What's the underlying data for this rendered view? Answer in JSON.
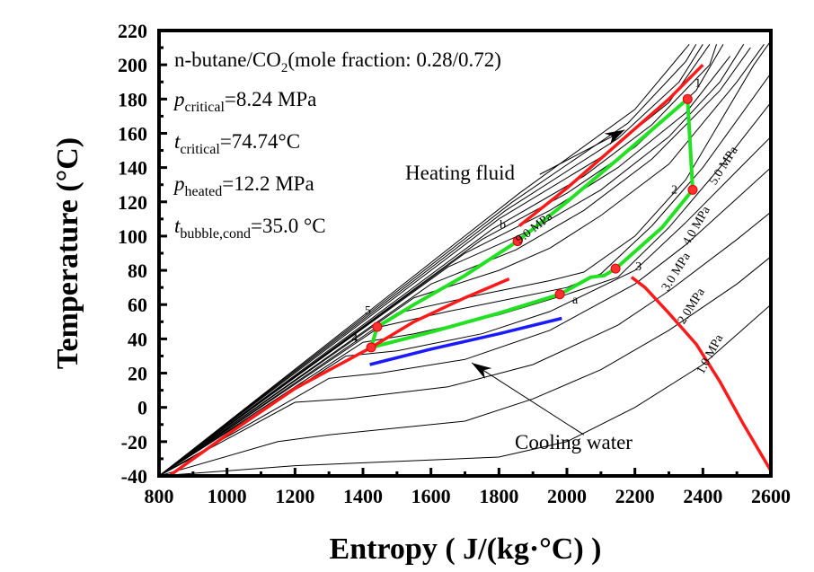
{
  "chart_data": {
    "type": "line",
    "title": "",
    "xlabel": "Entropy ( J/(kg·°C) )",
    "ylabel": "Temperature (°C)",
    "xlim": [
      800,
      2600
    ],
    "ylim": [
      -40,
      220
    ],
    "xticks": [
      800,
      1000,
      1200,
      1400,
      1600,
      1800,
      2000,
      2200,
      2400,
      2600
    ],
    "yticks": [
      -40,
      -20,
      0,
      20,
      40,
      60,
      80,
      100,
      120,
      140,
      160,
      180,
      200,
      220
    ],
    "grid": false,
    "annotations_text": {
      "mixture": "n-butane/CO",
      "mixture_sub": "2",
      "mixture_tail": "(mole fraction: 0.28/0.72)",
      "p_critical_sym": "p",
      "p_critical_sub": "critical",
      "p_critical_val": "=8.24 MPa",
      "t_critical_sym": "t",
      "t_critical_sub": "critical",
      "t_critical_val": "=74.74°C",
      "p_heated_sym": "p",
      "p_heated_sub": "heated",
      "p_heated_val": "=12.2 MPa",
      "t_bubble_sym": "t",
      "t_bubble_sub": "bubble,cond",
      "t_bubble_val": "=35.0 °C",
      "heating_fluid": "Heating fluid",
      "cooling_water": "Cooling water"
    },
    "isobar_labels": [
      {
        "text": "9.0 MPa",
        "s": 1910,
        "T": 103
      },
      {
        "text": "5.0 MPa",
        "s": 2470,
        "T": 140
      },
      {
        "text": "4.0 MPa",
        "s": 2390,
        "T": 105
      },
      {
        "text": "3.0 MPa",
        "s": 2330,
        "T": 78
      },
      {
        "text": "2.0MPa",
        "s": 2375,
        "T": 58
      },
      {
        "text": "1.0 MPa",
        "s": 2430,
        "T": 30
      }
    ],
    "state_points": [
      {
        "label": "1",
        "s": 2355,
        "T": 180
      },
      {
        "label": "2",
        "s": 2370,
        "T": 127
      },
      {
        "label": "3",
        "s": 2143,
        "T": 81
      },
      {
        "label": "a",
        "s": 1979,
        "T": 66
      },
      {
        "label": "4",
        "s": 1424,
        "T": 35
      },
      {
        "label": "5",
        "s": 1442,
        "T": 47
      },
      {
        "label": "b",
        "s": 1855,
        "T": 97
      }
    ],
    "series": [
      {
        "name": "cycle",
        "color": "#22e022",
        "points": [
          [
            1442,
            47
          ],
          [
            1550,
            60
          ],
          [
            1700,
            77
          ],
          [
            1855,
            97
          ],
          [
            2000,
            120
          ],
          [
            2150,
            145
          ],
          [
            2355,
            180
          ],
          [
            2370,
            127
          ],
          [
            2280,
            105
          ],
          [
            2143,
            81
          ],
          [
            2110,
            77
          ],
          [
            2070,
            76
          ],
          [
            1979,
            66
          ],
          [
            1800,
            55
          ],
          [
            1600,
            44
          ],
          [
            1424,
            35
          ],
          [
            1442,
            47
          ]
        ]
      },
      {
        "name": "heating fluid",
        "color": "#ff1a1a",
        "points": [
          [
            1860,
            106
          ],
          [
            2000,
            128
          ],
          [
            2150,
            154
          ],
          [
            2300,
            180
          ],
          [
            2400,
            200
          ]
        ]
      },
      {
        "name": "cooling water",
        "color": "#1a1aff",
        "points": [
          [
            1420,
            25
          ],
          [
            1600,
            34
          ],
          [
            1800,
            43
          ],
          [
            1985,
            52
          ]
        ]
      },
      {
        "name": "saturation liquid",
        "color": "#ff1a1a",
        "points": [
          [
            830,
            -40
          ],
          [
            1000,
            -16
          ],
          [
            1200,
            11
          ],
          [
            1424,
            35
          ],
          [
            1550,
            50
          ],
          [
            1700,
            64
          ],
          [
            1830,
            75
          ]
        ]
      },
      {
        "name": "saturation vapor",
        "color": "#ff1a1a",
        "points": [
          [
            2190,
            76
          ],
          [
            2230,
            70
          ],
          [
            2300,
            55
          ],
          [
            2380,
            37
          ],
          [
            2450,
            15
          ],
          [
            2520,
            -10
          ],
          [
            2600,
            -37
          ]
        ]
      }
    ],
    "isobars": [
      {
        "p": "1.0 MPa",
        "points": [
          [
            800,
            -40
          ],
          [
            1200,
            -34
          ],
          [
            1800,
            -29
          ],
          [
            2000,
            -20
          ],
          [
            2200,
            0
          ],
          [
            2400,
            25
          ],
          [
            2600,
            60
          ]
        ]
      },
      {
        "p": "2.0 MPa",
        "points": [
          [
            800,
            -40
          ],
          [
            1150,
            -20
          ],
          [
            1300,
            -16
          ],
          [
            1700,
            -8
          ],
          [
            1900,
            5
          ],
          [
            2100,
            22
          ],
          [
            2300,
            45
          ],
          [
            2500,
            72
          ],
          [
            2600,
            88
          ]
        ]
      },
      {
        "p": "3.0 MPa",
        "points": [
          [
            800,
            -40
          ],
          [
            1200,
            3
          ],
          [
            1350,
            5
          ],
          [
            1650,
            12
          ],
          [
            1900,
            25
          ],
          [
            2150,
            48
          ],
          [
            2300,
            68
          ],
          [
            2500,
            98
          ],
          [
            2600,
            114
          ]
        ]
      },
      {
        "p": "4.0 MPa",
        "points": [
          [
            800,
            -40
          ],
          [
            1300,
            17
          ],
          [
            1450,
            20
          ],
          [
            1700,
            28
          ],
          [
            1950,
            45
          ],
          [
            2200,
            72
          ],
          [
            2350,
            95
          ],
          [
            2500,
            122
          ],
          [
            2600,
            140
          ]
        ]
      },
      {
        "p": "5.0 MPa",
        "points": [
          [
            800,
            -40
          ],
          [
            1350,
            30
          ],
          [
            1500,
            33
          ],
          [
            1750,
            43
          ],
          [
            1950,
            56
          ],
          [
            2200,
            80
          ],
          [
            2350,
            108
          ],
          [
            2500,
            138
          ],
          [
            2600,
            158
          ]
        ]
      },
      {
        "p": "6.0 MPa",
        "points": [
          [
            800,
            -40
          ],
          [
            1400,
            38
          ],
          [
            1550,
            43
          ],
          [
            1800,
            54
          ],
          [
            2000,
            66
          ],
          [
            2150,
            76
          ],
          [
            2300,
            105
          ],
          [
            2450,
            140
          ],
          [
            2600,
            178
          ]
        ]
      },
      {
        "p": "7.0 MPa",
        "points": [
          [
            800,
            -40
          ],
          [
            1450,
            47
          ],
          [
            1650,
            56
          ],
          [
            1850,
            64
          ],
          [
            2000,
            70
          ],
          [
            2100,
            78
          ],
          [
            2250,
            106
          ],
          [
            2400,
            140
          ],
          [
            2600,
            195
          ]
        ]
      },
      {
        "p": "8.0 MPa",
        "points": [
          [
            800,
            -40
          ],
          [
            1500,
            55
          ],
          [
            1750,
            66
          ],
          [
            1950,
            74
          ],
          [
            2050,
            79
          ],
          [
            2200,
            100
          ],
          [
            2350,
            133
          ],
          [
            2550,
            200
          ],
          [
            2600,
            214
          ]
        ]
      },
      {
        "p": "9.0 MPa",
        "points": [
          [
            800,
            -40
          ],
          [
            1550,
            64
          ],
          [
            1800,
            80
          ],
          [
            1950,
            93
          ],
          [
            2100,
            112
          ],
          [
            2300,
            142
          ],
          [
            2500,
            190
          ],
          [
            2580,
            212
          ]
        ]
      },
      {
        "p": "10 MPa",
        "points": [
          [
            800,
            -40
          ],
          [
            1600,
            72
          ],
          [
            1850,
            92
          ],
          [
            2050,
            115
          ],
          [
            2250,
            145
          ],
          [
            2450,
            185
          ],
          [
            2540,
            210
          ]
        ]
      },
      {
        "p": "11 MPa",
        "points": [
          [
            800,
            -40
          ],
          [
            1650,
            82
          ],
          [
            1900,
            104
          ],
          [
            2100,
            127
          ],
          [
            2300,
            158
          ],
          [
            2450,
            190
          ],
          [
            2520,
            212
          ]
        ]
      },
      {
        "p": "12 MPa",
        "points": [
          [
            800,
            -40
          ],
          [
            1700,
            90
          ],
          [
            1950,
            115
          ],
          [
            2150,
            140
          ],
          [
            2350,
            172
          ],
          [
            2480,
            205
          ]
        ]
      },
      {
        "p": "13 MPa",
        "points": [
          [
            800,
            -40
          ],
          [
            1750,
            98
          ],
          [
            2000,
            125
          ],
          [
            2200,
            152
          ],
          [
            2380,
            185
          ],
          [
            2460,
            212
          ]
        ]
      },
      {
        "p": "14 MPa",
        "points": [
          [
            800,
            -40
          ],
          [
            1780,
            104
          ],
          [
            2050,
            135
          ],
          [
            2250,
            165
          ],
          [
            2420,
            200
          ],
          [
            2440,
            212
          ]
        ]
      },
      {
        "p": "15 MPa",
        "points": [
          [
            800,
            -40
          ],
          [
            1800,
            110
          ],
          [
            2100,
            146
          ],
          [
            2300,
            178
          ],
          [
            2420,
            212
          ]
        ]
      },
      {
        "p": "16 MPa",
        "points": [
          [
            800,
            -40
          ],
          [
            1820,
            115
          ],
          [
            2150,
            157
          ],
          [
            2330,
            190
          ],
          [
            2400,
            212
          ]
        ]
      },
      {
        "p": "17 MPa",
        "points": [
          [
            800,
            -40
          ],
          [
            1840,
            120
          ],
          [
            2180,
            166
          ],
          [
            2350,
            202
          ],
          [
            2380,
            212
          ]
        ]
      },
      {
        "p": "18 MPa",
        "points": [
          [
            800,
            -40
          ],
          [
            1860,
            125
          ],
          [
            2200,
            174
          ],
          [
            2360,
            212
          ]
        ]
      }
    ],
    "arrows": [
      {
        "name": "heating-fluid-arrow",
        "from": [
          1920,
          136
        ],
        "to": [
          2170,
          162
        ]
      },
      {
        "name": "cooling-water-arrow",
        "from": [
          2050,
          -16
        ],
        "to": [
          1720,
          26
        ]
      }
    ]
  }
}
